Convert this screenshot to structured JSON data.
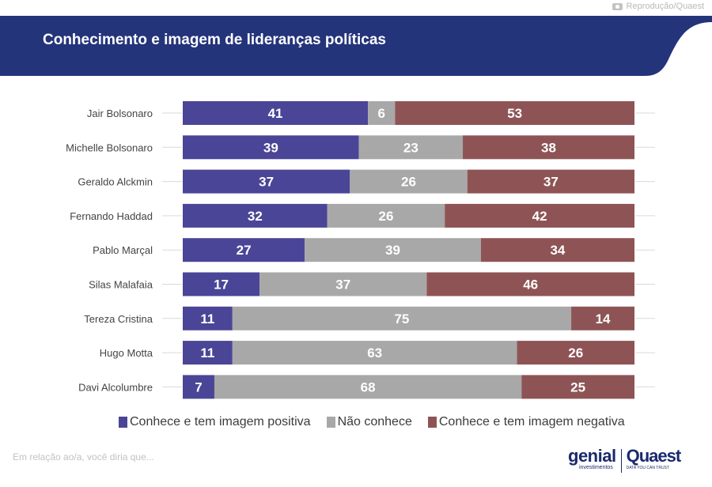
{
  "credit": "Reprodução/Quaest",
  "header": {
    "title": "Conhecimento e imagem de lideranças políticas"
  },
  "colors": {
    "banner": "#24347a",
    "positive": "#4b4597",
    "unknown": "#a8a8a8",
    "negative": "#8e5455"
  },
  "chart_data": {
    "type": "bar",
    "orientation": "horizontal",
    "stacked": true,
    "title": "Conhecimento e imagem de lideranças políticas",
    "categories": [
      "Jair Bolsonaro",
      "Michelle Bolsonaro",
      "Geraldo Alckmin",
      "Fernando Haddad",
      "Pablo Marçal",
      "Silas Malafaia",
      "Tereza Cristina",
      "Hugo Motta",
      "Davi Alcolumbre"
    ],
    "series": [
      {
        "name": "Conhece e tem imagem positiva",
        "color": "#4b4597",
        "values": [
          41,
          39,
          37,
          32,
          27,
          17,
          11,
          11,
          7
        ]
      },
      {
        "name": "Não conhece",
        "color": "#a8a8a8",
        "values": [
          6,
          23,
          26,
          26,
          39,
          37,
          75,
          63,
          68
        ]
      },
      {
        "name": "Conhece e tem imagem negativa",
        "color": "#8e5455",
        "values": [
          53,
          38,
          37,
          42,
          34,
          46,
          14,
          26,
          25
        ]
      }
    ],
    "xlim": [
      0,
      100
    ],
    "legend": "bottom"
  },
  "legend": {
    "positive": "Conhece e tem imagem positiva",
    "unknown": "Não conhece",
    "negative": "Conhece e tem imagem negativa"
  },
  "footnote": "Em relação ao/a, você diria que...",
  "logos": {
    "genial": "genial",
    "genial_sub": "investimentos",
    "quaest": "Quaest",
    "quaest_sub": "DATA YOU CAN TRUST"
  }
}
